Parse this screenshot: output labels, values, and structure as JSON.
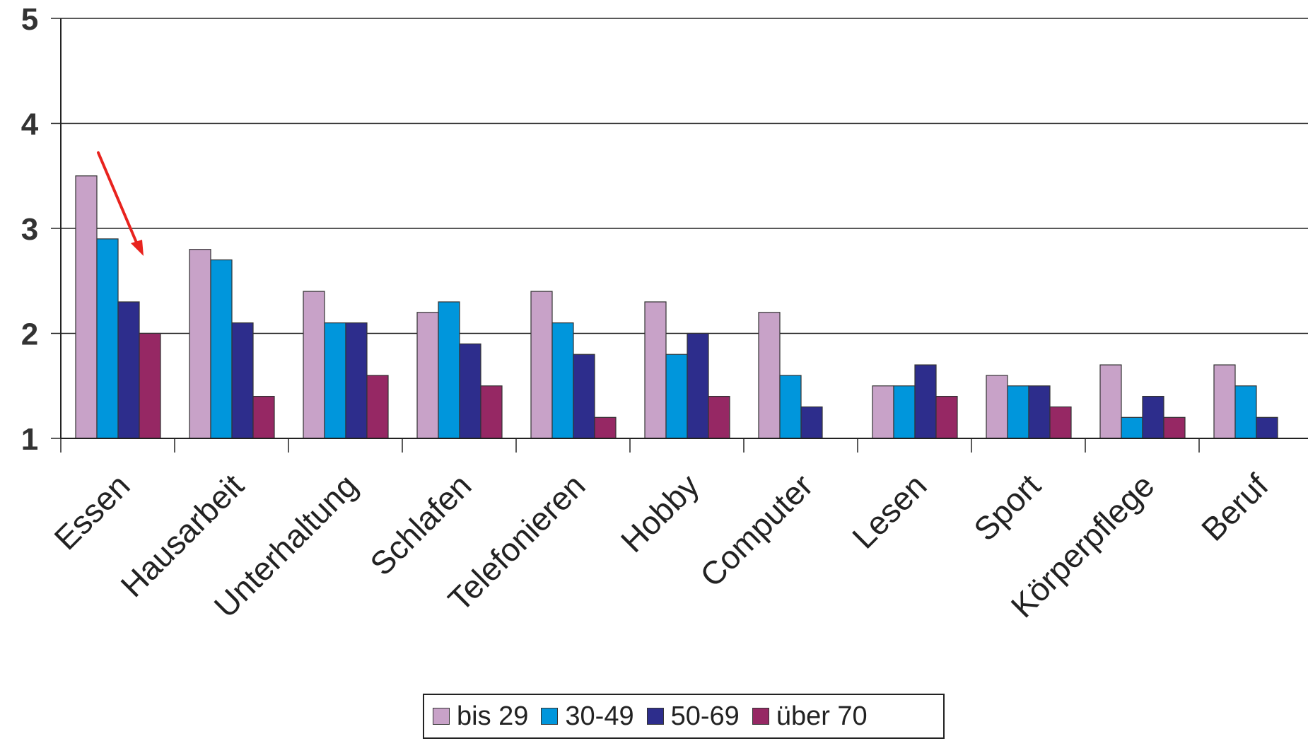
{
  "chart_data": {
    "type": "bar",
    "categories": [
      "Essen",
      "Hausarbeit",
      "Unterhaltung",
      "Schlafen",
      "Telefonieren",
      "Hobby",
      "Computer",
      "Lesen",
      "Sport",
      "Körperpflege",
      "Beruf"
    ],
    "series": [
      {
        "name": "bis 29",
        "color": "#c8a2c8",
        "values": [
          3.5,
          2.8,
          2.4,
          2.2,
          2.4,
          2.3,
          2.2,
          1.5,
          1.6,
          1.7,
          1.7
        ]
      },
      {
        "name": "30-49",
        "color": "#0096dc",
        "values": [
          2.9,
          2.7,
          2.1,
          2.3,
          2.1,
          1.8,
          1.6,
          1.5,
          1.5,
          1.2,
          1.5
        ]
      },
      {
        "name": "50-69",
        "color": "#2d2d8c",
        "values": [
          2.3,
          2.1,
          2.1,
          1.9,
          1.8,
          2.0,
          1.3,
          1.7,
          1.5,
          1.4,
          1.2
        ]
      },
      {
        "name": "über 70",
        "color": "#962864",
        "values": [
          2.0,
          1.4,
          1.6,
          1.5,
          1.2,
          1.4,
          null,
          1.4,
          1.3,
          1.2,
          null
        ]
      }
    ],
    "yticks": [
      "1",
      "2",
      "3",
      "4",
      "5"
    ],
    "ylim": [
      1,
      5
    ],
    "grid": true,
    "legend": "bottom-center",
    "annotation": {
      "type": "arrow",
      "color": "#e8231e"
    }
  }
}
